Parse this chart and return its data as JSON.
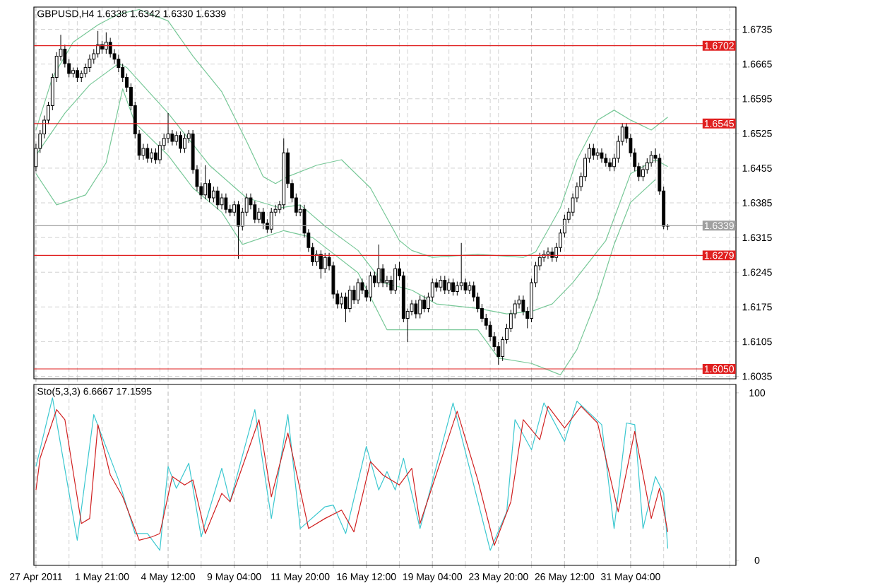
{
  "chart_data": [
    {
      "type": "candlestick",
      "title": "GBPUSD,H4 1.6338 1.6342 1.6330 1.6339",
      "color": "#000000",
      "categories": [
        null,
        null,
        null,
        null,
        null,
        null,
        null,
        null,
        null,
        null,
        null,
        null,
        null,
        null,
        null,
        null,
        null,
        null,
        null,
        null,
        null,
        null,
        null,
        null,
        null,
        null,
        null,
        null,
        null,
        null,
        null,
        null,
        null,
        null,
        null,
        null,
        null,
        null,
        null,
        null,
        null,
        null,
        null,
        null,
        null,
        null,
        null,
        null,
        null,
        null,
        null,
        null,
        null,
        null,
        null,
        null,
        null,
        null,
        null,
        null,
        null,
        null,
        null,
        null,
        null,
        null,
        null,
        null,
        null,
        null,
        null,
        null,
        null,
        null,
        null,
        null,
        null,
        null,
        null,
        null,
        null,
        null,
        null,
        null,
        null,
        null,
        null,
        null,
        null,
        null,
        null,
        null,
        null,
        null,
        null,
        null,
        null,
        null,
        null,
        null,
        null,
        null,
        null,
        null,
        null,
        null,
        null,
        null,
        null,
        null,
        null,
        null,
        null,
        null,
        null,
        null,
        null,
        null,
        null,
        null,
        null,
        null,
        null,
        null,
        null,
        null,
        null,
        null,
        null,
        null,
        null,
        null,
        null,
        null,
        null,
        null,
        null,
        null,
        null,
        null,
        null,
        null,
        null,
        null,
        null,
        null,
        null,
        null,
        null,
        null,
        null,
        null,
        null,
        null,
        null,
        null,
        null,
        null,
        null,
        null,
        null,
        null,
        null,
        null,
        null,
        null,
        null,
        null,
        null,
        null
      ],
      "ohlc": [
        [
          1.6458,
          1.6504,
          1.6449,
          1.6495
        ],
        [
          1.6495,
          1.6532,
          1.6486,
          1.6524
        ],
        [
          1.6524,
          1.6561,
          1.6515,
          1.6552
        ],
        [
          1.6552,
          1.6589,
          1.6544,
          1.6581
        ],
        [
          1.6581,
          1.6646,
          1.6572,
          1.6638
        ],
        [
          1.6638,
          1.6689,
          1.6629,
          1.6681
        ],
        [
          1.6681,
          1.6724,
          1.6672,
          1.6695
        ],
        [
          1.6695,
          1.6704,
          1.6658,
          1.6666
        ],
        [
          1.6666,
          1.6675,
          1.6638,
          1.6646
        ],
        [
          1.6646,
          1.6658,
          1.6638,
          1.6652
        ],
        [
          1.6652,
          1.6658,
          1.6629,
          1.6638
        ],
        [
          1.6638,
          1.6652,
          1.6629,
          1.6646
        ],
        [
          1.6646,
          1.6666,
          1.6638,
          1.6658
        ],
        [
          1.6658,
          1.6684,
          1.6649,
          1.6675
        ],
        [
          1.6675,
          1.6695,
          1.6666,
          1.6686
        ],
        [
          1.6686,
          1.6732,
          1.6678,
          1.6704
        ],
        [
          1.6704,
          1.6712,
          1.6686,
          1.6695
        ],
        [
          1.6695,
          1.6729,
          1.6686,
          1.6709
        ],
        [
          1.6709,
          1.6718,
          1.6678,
          1.6686
        ],
        [
          1.6686,
          1.6695,
          1.6666,
          1.6675
        ],
        [
          1.6675,
          1.6684,
          1.6649,
          1.6658
        ],
        [
          1.6658,
          1.6666,
          1.6629,
          1.6638
        ],
        [
          1.6638,
          1.6646,
          1.6609,
          1.6618
        ],
        [
          1.6618,
          1.6626,
          1.6572,
          1.6581
        ],
        [
          1.6581,
          1.6589,
          1.6515,
          1.6524
        ],
        [
          1.6524,
          1.6532,
          1.6472,
          1.6481
        ],
        [
          1.6481,
          1.6504,
          1.6472,
          1.6495
        ],
        [
          1.6495,
          1.6504,
          1.6466,
          1.6475
        ],
        [
          1.6475,
          1.6495,
          1.6466,
          1.6486
        ],
        [
          1.6486,
          1.6495,
          1.6464,
          1.6472
        ],
        [
          1.6472,
          1.6509,
          1.6464,
          1.6501
        ],
        [
          1.6501,
          1.6524,
          1.6492,
          1.6515
        ],
        [
          1.6515,
          1.6566,
          1.6506,
          1.6524
        ],
        [
          1.6524,
          1.6532,
          1.6501,
          1.6509
        ],
        [
          1.6509,
          1.6529,
          1.6501,
          1.6521
        ],
        [
          1.6521,
          1.6529,
          1.6486,
          1.6495
        ],
        [
          1.6495,
          1.6524,
          1.6486,
          1.6515
        ],
        [
          1.6515,
          1.6532,
          1.6506,
          1.6524
        ],
        [
          1.6524,
          1.6532,
          1.6444,
          1.6452
        ],
        [
          1.6452,
          1.6461,
          1.6409,
          1.6418
        ],
        [
          1.6418,
          1.6426,
          1.6392,
          1.6401
        ],
        [
          1.6401,
          1.6461,
          1.6392,
          1.6424
        ],
        [
          1.6424,
          1.6432,
          1.6386,
          1.6395
        ],
        [
          1.6395,
          1.6418,
          1.6386,
          1.6409
        ],
        [
          1.6409,
          1.6418,
          1.6372,
          1.6381
        ],
        [
          1.6381,
          1.6404,
          1.6372,
          1.6395
        ],
        [
          1.6395,
          1.6404,
          1.6364,
          1.6372
        ],
        [
          1.6372,
          1.6381,
          1.6358,
          1.6366
        ],
        [
          1.6366,
          1.6389,
          1.6358,
          1.6381
        ],
        [
          1.6381,
          1.6389,
          1.6272,
          1.6338
        ],
        [
          1.6338,
          1.6375,
          1.6329,
          1.6366
        ],
        [
          1.6366,
          1.6404,
          1.6358,
          1.6395
        ],
        [
          1.6395,
          1.6404,
          1.6372,
          1.6381
        ],
        [
          1.6381,
          1.6389,
          1.6344,
          1.6352
        ],
        [
          1.6352,
          1.6375,
          1.6344,
          1.6366
        ],
        [
          1.6366,
          1.6375,
          1.6332,
          1.6344
        ],
        [
          1.6344,
          1.6352,
          1.6324,
          1.6332
        ],
        [
          1.6332,
          1.6375,
          1.6324,
          1.6366
        ],
        [
          1.6366,
          1.6381,
          1.6358,
          1.6372
        ],
        [
          1.6372,
          1.6389,
          1.6364,
          1.6381
        ],
        [
          1.6381,
          1.6515,
          1.6372,
          1.6486
        ],
        [
          1.6486,
          1.6495,
          1.6415,
          1.6424
        ],
        [
          1.6424,
          1.6432,
          1.6386,
          1.6395
        ],
        [
          1.6395,
          1.6404,
          1.6358,
          1.6366
        ],
        [
          1.6366,
          1.6381,
          1.6358,
          1.6372
        ],
        [
          1.6372,
          1.6381,
          1.6315,
          1.6324
        ],
        [
          1.6324,
          1.6332,
          1.6286,
          1.6295
        ],
        [
          1.6295,
          1.6304,
          1.6258,
          1.6266
        ],
        [
          1.6266,
          1.6289,
          1.6258,
          1.6281
        ],
        [
          1.6281,
          1.6289,
          1.6232,
          1.6252
        ],
        [
          1.6252,
          1.6284,
          1.6244,
          1.6275
        ],
        [
          1.6275,
          1.6284,
          1.6249,
          1.6258
        ],
        [
          1.6258,
          1.6266,
          1.6192,
          1.6201
        ],
        [
          1.6201,
          1.6209,
          1.6172,
          1.6181
        ],
        [
          1.6181,
          1.6204,
          1.6172,
          1.6195
        ],
        [
          1.6195,
          1.6204,
          1.6144,
          1.6172
        ],
        [
          1.6172,
          1.6218,
          1.6164,
          1.6209
        ],
        [
          1.6209,
          1.6218,
          1.6181,
          1.6189
        ],
        [
          1.6189,
          1.6232,
          1.6181,
          1.6224
        ],
        [
          1.6224,
          1.6232,
          1.6201,
          1.6209
        ],
        [
          1.6209,
          1.6218,
          1.6186,
          1.6195
        ],
        [
          1.6195,
          1.6246,
          1.6186,
          1.6238
        ],
        [
          1.6238,
          1.6246,
          1.6215,
          1.6224
        ],
        [
          1.6224,
          1.6301,
          1.6215,
          1.6252
        ],
        [
          1.6252,
          1.6261,
          1.6215,
          1.6224
        ],
        [
          1.6224,
          1.6238,
          1.6215,
          1.6229
        ],
        [
          1.6229,
          1.6238,
          1.6201,
          1.6209
        ],
        [
          1.6209,
          1.6261,
          1.6201,
          1.6252
        ],
        [
          1.6252,
          1.6266,
          1.6229,
          1.6238
        ],
        [
          1.6238,
          1.6246,
          1.6144,
          1.6152
        ],
        [
          1.6152,
          1.6172,
          1.6104,
          1.6166
        ],
        [
          1.6166,
          1.6189,
          1.6158,
          1.6181
        ],
        [
          1.6181,
          1.6189,
          1.6152,
          1.6161
        ],
        [
          1.6161,
          1.6198,
          1.6152,
          1.6189
        ],
        [
          1.6189,
          1.6198,
          1.6164,
          1.6172
        ],
        [
          1.6172,
          1.6204,
          1.6164,
          1.6195
        ],
        [
          1.6195,
          1.6232,
          1.6186,
          1.6224
        ],
        [
          1.6224,
          1.6232,
          1.6206,
          1.6215
        ],
        [
          1.6215,
          1.6238,
          1.6206,
          1.6229
        ],
        [
          1.6229,
          1.6238,
          1.6201,
          1.6209
        ],
        [
          1.6209,
          1.6232,
          1.6201,
          1.6224
        ],
        [
          1.6224,
          1.6232,
          1.6198,
          1.6206
        ],
        [
          1.6206,
          1.6226,
          1.6198,
          1.6218
        ],
        [
          1.6218,
          1.6304,
          1.6209,
          1.6224
        ],
        [
          1.6224,
          1.6232,
          1.6201,
          1.6209
        ],
        [
          1.6209,
          1.6226,
          1.6201,
          1.6218
        ],
        [
          1.6218,
          1.6226,
          1.6186,
          1.6195
        ],
        [
          1.6195,
          1.6204,
          1.6164,
          1.6172
        ],
        [
          1.6172,
          1.6181,
          1.6144,
          1.6152
        ],
        [
          1.6152,
          1.6161,
          1.6129,
          1.6138
        ],
        [
          1.6138,
          1.6146,
          1.6106,
          1.6115
        ],
        [
          1.6115,
          1.6124,
          1.6086,
          1.6095
        ],
        [
          1.6095,
          1.6104,
          1.6058,
          1.6075
        ],
        [
          1.6075,
          1.6115,
          1.6066,
          1.6109
        ],
        [
          1.6109,
          1.6141,
          1.6101,
          1.6132
        ],
        [
          1.6132,
          1.6169,
          1.6124,
          1.6161
        ],
        [
          1.6161,
          1.6189,
          1.6152,
          1.6181
        ],
        [
          1.6181,
          1.6198,
          1.6172,
          1.6189
        ],
        [
          1.6189,
          1.6198,
          1.6158,
          1.6166
        ],
        [
          1.6166,
          1.6175,
          1.6132,
          1.6152
        ],
        [
          1.6152,
          1.6232,
          1.6144,
          1.6224
        ],
        [
          1.6224,
          1.6266,
          1.6215,
          1.6258
        ],
        [
          1.6258,
          1.6284,
          1.6249,
          1.6275
        ],
        [
          1.6275,
          1.6289,
          1.6266,
          1.6281
        ],
        [
          1.6281,
          1.6295,
          1.6272,
          1.6286
        ],
        [
          1.6286,
          1.6295,
          1.6266,
          1.6275
        ],
        [
          1.6275,
          1.6304,
          1.6266,
          1.6295
        ],
        [
          1.6295,
          1.6332,
          1.6286,
          1.6324
        ],
        [
          1.6324,
          1.6361,
          1.6315,
          1.6352
        ],
        [
          1.6352,
          1.6375,
          1.6344,
          1.6366
        ],
        [
          1.6366,
          1.6404,
          1.6358,
          1.6395
        ],
        [
          1.6395,
          1.6426,
          1.6386,
          1.6418
        ],
        [
          1.6418,
          1.6446,
          1.6409,
          1.6438
        ],
        [
          1.6438,
          1.6484,
          1.6429,
          1.6475
        ],
        [
          1.6475,
          1.6504,
          1.6466,
          1.6495
        ],
        [
          1.6495,
          1.6504,
          1.6472,
          1.6481
        ],
        [
          1.6481,
          1.6495,
          1.6472,
          1.6486
        ],
        [
          1.6486,
          1.6495,
          1.6466,
          1.6475
        ],
        [
          1.6475,
          1.6484,
          1.6458,
          1.6466
        ],
        [
          1.6466,
          1.6475,
          1.6449,
          1.6458
        ],
        [
          1.6458,
          1.6484,
          1.6449,
          1.6475
        ],
        [
          1.6475,
          1.6521,
          1.6466,
          1.6509
        ],
        [
          1.6509,
          1.6546,
          1.6501,
          1.6538
        ],
        [
          1.6538,
          1.6546,
          1.6506,
          1.6515
        ],
        [
          1.6515,
          1.6524,
          1.6478,
          1.6486
        ],
        [
          1.6486,
          1.6495,
          1.6449,
          1.6458
        ],
        [
          1.6458,
          1.6466,
          1.6429,
          1.6438
        ],
        [
          1.6438,
          1.6461,
          1.6429,
          1.6452
        ],
        [
          1.6452,
          1.6475,
          1.6444,
          1.6466
        ],
        [
          1.6466,
          1.6489,
          1.6458,
          1.6481
        ],
        [
          1.6481,
          1.6495,
          1.6466,
          1.6475
        ],
        [
          1.6475,
          1.6484,
          1.6401,
          1.6409
        ],
        [
          1.6409,
          1.6418,
          1.6332,
          1.6338
        ],
        [
          1.6338,
          1.6342,
          1.633,
          1.6339
        ],
        null,
        null,
        null,
        null,
        null,
        null,
        null,
        null,
        null,
        null,
        null,
        null,
        null,
        null,
        null,
        null
      ],
      "series": [
        {
          "type": "line",
          "color": "#78c898",
          "values": [
            1.6532,
            null,
            null,
            null,
            1.6638,
            null,
            null,
            null,
            null,
            1.6709,
            null,
            null,
            null,
            null,
            null,
            1.6744,
            null,
            null,
            null,
            null,
            1.6766,
            null,
            null,
            null,
            null,
            1.6775,
            null,
            null,
            null,
            null,
            null,
            null,
            1.6752,
            null,
            null,
            null,
            null,
            null,
            1.6681,
            null,
            null,
            null,
            null,
            null,
            null,
            1.6609,
            null,
            null,
            null,
            null,
            null,
            1.6509,
            null,
            null,
            null,
            1.6438,
            null,
            null,
            1.6424,
            null,
            null,
            1.6438,
            null,
            null,
            null,
            null,
            null,
            null,
            1.6461,
            null,
            null,
            null,
            null,
            null,
            1.6472,
            null,
            null,
            null,
            null,
            null,
            null,
            1.6415,
            null,
            null,
            null,
            null,
            null,
            null,
            1.6309,
            null,
            null,
            1.6289,
            null,
            null,
            null,
            null,
            1.6275,
            null,
            null,
            null,
            null,
            null,
            null,
            null,
            null,
            null,
            null,
            1.6281,
            null,
            null,
            null,
            null,
            null,
            null,
            null,
            null,
            null,
            null,
            1.6275,
            null,
            null,
            1.6286,
            null,
            null,
            null,
            null,
            null,
            1.6375,
            null,
            null,
            null,
            1.6472,
            null,
            null,
            null,
            null,
            1.6552,
            null,
            null,
            null,
            1.6572,
            null,
            null,
            null,
            1.6552,
            null,
            null,
            null,
            null,
            1.6532,
            null,
            null,
            null,
            1.6558,
            null,
            null,
            null,
            null,
            null,
            null,
            null,
            null,
            null,
            null,
            null,
            null,
            null,
            null,
            null,
            null
          ]
        },
        {
          "type": "line",
          "color": "#78c898",
          "values": [
            1.6481,
            null,
            null,
            null,
            null,
            null,
            null,
            1.6566,
            null,
            null,
            null,
            null,
            null,
            1.6623,
            null,
            null,
            null,
            null,
            null,
            null,
            1.6666,
            null,
            1.6658,
            null,
            null,
            null,
            null,
            null,
            null,
            null,
            null,
            null,
            1.6566,
            null,
            null,
            null,
            null,
            null,
            null,
            null,
            null,
            null,
            1.6461,
            null,
            null,
            null,
            null,
            null,
            null,
            null,
            null,
            1.6395,
            null,
            null,
            null,
            null,
            null,
            null,
            null,
            1.6375,
            null,
            null,
            null,
            null,
            1.6381,
            null,
            null,
            null,
            null,
            null,
            1.6338,
            null,
            null,
            null,
            null,
            null,
            null,
            null,
            1.6289,
            null,
            null,
            null,
            null,
            null,
            1.6224,
            null,
            null,
            null,
            null,
            null,
            null,
            1.6209,
            null,
            null,
            null,
            null,
            null,
            1.6181,
            null,
            null,
            null,
            null,
            null,
            null,
            null,
            null,
            null,
            1.6172,
            null,
            null,
            null,
            null,
            null,
            null,
            1.6161,
            null,
            null,
            null,
            null,
            null,
            1.6166,
            null,
            null,
            null,
            null,
            1.6181,
            null,
            null,
            null,
            null,
            1.6224,
            null,
            null,
            null,
            null,
            null,
            null,
            null,
            1.6309,
            null,
            null,
            null,
            null,
            null,
            1.6444,
            null,
            null,
            null,
            null,
            null,
            1.6472,
            null,
            null,
            1.6458,
            null,
            null,
            null,
            null,
            null,
            null,
            null,
            null,
            null,
            null,
            null,
            null,
            null,
            null,
            null,
            null
          ]
        },
        {
          "type": "line",
          "color": "#78c898",
          "values": [
            1.6444,
            null,
            null,
            null,
            null,
            1.6381,
            null,
            null,
            null,
            null,
            null,
            null,
            1.6401,
            null,
            null,
            null,
            null,
            1.6466,
            null,
            null,
            null,
            1.6615,
            null,
            null,
            1.6546,
            null,
            null,
            null,
            null,
            null,
            null,
            null,
            1.6481,
            null,
            null,
            null,
            null,
            null,
            1.6415,
            null,
            null,
            null,
            null,
            null,
            null,
            1.6366,
            null,
            null,
            null,
            null,
            1.6301,
            null,
            null,
            null,
            null,
            null,
            1.6318,
            null,
            null,
            null,
            1.6329,
            null,
            null,
            null,
            null,
            null,
            null,
            1.6315,
            null,
            null,
            null,
            null,
            null,
            null,
            null,
            null,
            null,
            null,
            1.6244,
            null,
            null,
            null,
            null,
            null,
            null,
            1.6129,
            null,
            null,
            null,
            null,
            null,
            1.6129,
            null,
            null,
            null,
            null,
            null,
            null,
            null,
            null,
            null,
            null,
            null,
            null,
            null,
            null,
            null,
            1.6129,
            null,
            null,
            null,
            null,
            1.6072,
            null,
            null,
            null,
            null,
            null,
            null,
            null,
            1.6061,
            null,
            null,
            null,
            null,
            null,
            null,
            1.6038,
            null,
            null,
            null,
            1.6089,
            null,
            null,
            null,
            null,
            1.6195,
            null,
            null,
            null,
            1.6301,
            null,
            null,
            null,
            1.6386,
            null,
            null,
            null,
            null,
            null,
            1.6432,
            null,
            null,
            null,
            null,
            null,
            null,
            null,
            null,
            null,
            null,
            null,
            null,
            null,
            null,
            null,
            null,
            null,
            null,
            null
          ]
        }
      ],
      "ylim": [
        1.603,
        1.678
      ],
      "yticks": [
        1.6035,
        1.6105,
        1.6175,
        1.6245,
        1.6315,
        1.6385,
        1.6455,
        1.6525,
        1.6595,
        1.6665,
        1.6735
      ],
      "ref_lines": [
        {
          "axis": "y",
          "value": 1.6702,
          "label": "1.6702",
          "color": "#e02020"
        },
        {
          "axis": "y",
          "value": 1.6545,
          "label": "1.6545",
          "color": "#e02020"
        },
        {
          "axis": "y",
          "value": 1.6279,
          "label": "1.6279",
          "color": "#e02020"
        },
        {
          "axis": "y",
          "value": 1.605,
          "label": "1.6050",
          "color": "#e02020"
        },
        {
          "axis": "y",
          "value": 1.6339,
          "label": "1.6339",
          "color": "#a0a0a0"
        }
      ],
      "grid": true,
      "tick_labels": "y"
    },
    {
      "type": "line",
      "title": "Sto(5,3,3) 6.6667 17.1595",
      "categories": [
        "27 Apr 2011",
        null,
        null,
        null,
        null,
        null,
        null,
        null,
        null,
        null,
        null,
        null,
        null,
        null,
        null,
        null,
        "1 May 21:00",
        null,
        null,
        null,
        null,
        null,
        null,
        null,
        null,
        null,
        null,
        null,
        null,
        null,
        null,
        null,
        "4 May 12:00",
        null,
        null,
        null,
        null,
        null,
        null,
        null,
        null,
        null,
        null,
        null,
        null,
        null,
        null,
        null,
        "9 May 04:00",
        null,
        null,
        null,
        null,
        null,
        null,
        null,
        null,
        null,
        null,
        null,
        null,
        null,
        null,
        null,
        "11 May 20:00",
        null,
        null,
        null,
        null,
        null,
        null,
        null,
        null,
        null,
        null,
        null,
        null,
        null,
        null,
        null,
        "16 May 12:00",
        null,
        null,
        null,
        null,
        null,
        null,
        null,
        null,
        null,
        null,
        null,
        null,
        null,
        null,
        null,
        "19 May 04:00",
        null,
        null,
        null,
        null,
        null,
        null,
        null,
        null,
        null,
        null,
        null,
        null,
        null,
        null,
        null,
        "23 May 20:00",
        null,
        null,
        null,
        null,
        null,
        null,
        null,
        null,
        null,
        null,
        null,
        null,
        null,
        null,
        null,
        "26 May 12:00",
        null,
        null,
        null,
        null,
        null,
        null,
        null,
        null,
        null,
        null,
        null,
        null,
        null,
        null,
        null,
        "31 May 04:00",
        null,
        null,
        null,
        null,
        null,
        null,
        null,
        null,
        null,
        null,
        null,
        null,
        null,
        null,
        null,
        null,
        null,
        null,
        null,
        null,
        null,
        null,
        null,
        null,
        null
      ],
      "series": [
        {
          "color": "#3cc8d0",
          "values": [
            56,
            null,
            null,
            null,
            97,
            null,
            null,
            null,
            null,
            null,
            12,
            null,
            null,
            null,
            87,
            null,
            null,
            null,
            null,
            null,
            48,
            null,
            null,
            null,
            16,
            null,
            null,
            16,
            null,
            null,
            6,
            null,
            56,
            null,
            43,
            null,
            null,
            58,
            null,
            null,
            14,
            null,
            null,
            null,
            null,
            55,
            null,
            35,
            null,
            null,
            null,
            null,
            null,
            90,
            null,
            null,
            null,
            25,
            null,
            null,
            null,
            87,
            null,
            null,
            19,
            null,
            null,
            null,
            null,
            null,
            32,
            null,
            33,
            null,
            null,
            16,
            null,
            null,
            null,
            null,
            68,
            null,
            null,
            42,
            null,
            53,
            null,
            42,
            null,
            61,
            null,
            null,
            null,
            19,
            null,
            null,
            null,
            null,
            null,
            null,
            null,
            94,
            null,
            null,
            null,
            null,
            null,
            null,
            null,
            null,
            6,
            null,
            null,
            null,
            29,
            null,
            84,
            null,
            null,
            null,
            66,
            null,
            null,
            94,
            null,
            null,
            null,
            null,
            71,
            null,
            null,
            95,
            null,
            null,
            null,
            null,
            null,
            81,
            null,
            null,
            19,
            null,
            null,
            82,
            null,
            81,
            null,
            19,
            null,
            null,
            50,
            null,
            40,
            7,
            null,
            null,
            null,
            null,
            null,
            null,
            null,
            null,
            null,
            null,
            null,
            null,
            null,
            null,
            null,
            null
          ]
        },
        {
          "color": "#d02020",
          "values": [
            42,
            61,
            null,
            null,
            null,
            90,
            null,
            84,
            null,
            null,
            null,
            22,
            null,
            25,
            null,
            81,
            null,
            null,
            51,
            null,
            null,
            38,
            null,
            null,
            null,
            12,
            null,
            null,
            14,
            null,
            16,
            null,
            null,
            50,
            null,
            null,
            45,
            null,
            48,
            null,
            null,
            16,
            null,
            null,
            null,
            40,
            null,
            35,
            null,
            null,
            null,
            null,
            null,
            null,
            84,
            null,
            null,
            38,
            null,
            null,
            null,
            76,
            null,
            null,
            null,
            null,
            19,
            null,
            null,
            null,
            25,
            null,
            null,
            null,
            30,
            null,
            null,
            17,
            null,
            null,
            null,
            59,
            null,
            null,
            51,
            null,
            null,
            null,
            45,
            null,
            null,
            55,
            null,
            22,
            null,
            null,
            null,
            null,
            null,
            null,
            null,
            null,
            89,
            null,
            null,
            null,
            null,
            48,
            null,
            null,
            null,
            9,
            null,
            null,
            null,
            35,
            null,
            null,
            84,
            null,
            null,
            null,
            72,
            null,
            92,
            null,
            null,
            null,
            79,
            null,
            null,
            null,
            92,
            null,
            null,
            null,
            82,
            null,
            null,
            null,
            null,
            29,
            null,
            null,
            null,
            77,
            null,
            null,
            null,
            25,
            null,
            43,
            null,
            17,
            null,
            null,
            null,
            null,
            null,
            null,
            null,
            null,
            null,
            null,
            null,
            null,
            null,
            null,
            null,
            null
          ]
        }
      ],
      "ylim": [
        -3,
        105
      ],
      "yticks": [
        0,
        100
      ],
      "grid": "x"
    }
  ]
}
